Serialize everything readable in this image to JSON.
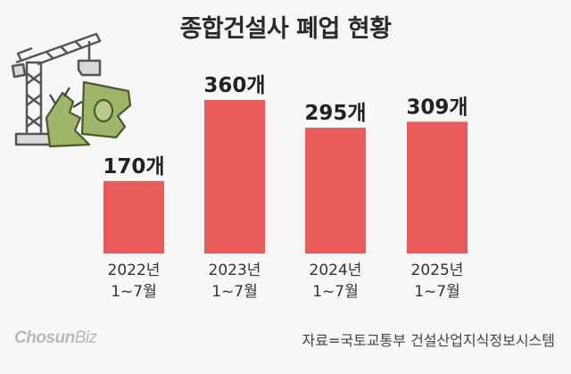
{
  "title": "종합건설사 폐업 현황",
  "source": "자료=국토교통부 건설산업지식정보시스템",
  "logo": {
    "main": "Chosun",
    "sub": "Biz"
  },
  "illustration": {
    "icon": "crane-and-torn-banknote-icon"
  },
  "colors": {
    "bar": "#e85c5c",
    "background": "#f7f7f7",
    "text": "#222222"
  },
  "chart_data": {
    "type": "bar",
    "title": "종합건설사 폐업 현황",
    "categories": [
      "2022년\n1~7월",
      "2023년\n1~7월",
      "2024년\n1~7월",
      "2025년\n1~7월"
    ],
    "values": [
      170,
      360,
      295,
      309
    ],
    "data_labels": [
      "170개",
      "360개",
      "295개",
      "309개"
    ],
    "xlabel": "",
    "ylabel": "",
    "ylim": [
      0,
      360
    ],
    "grid": false
  }
}
